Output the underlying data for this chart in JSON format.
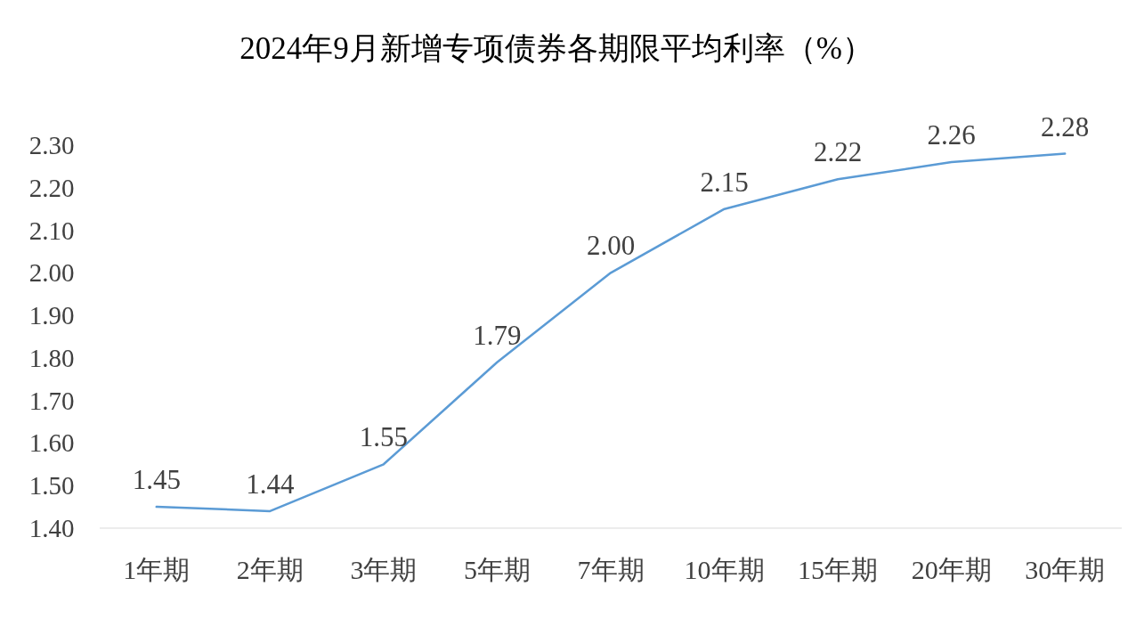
{
  "chart_data": {
    "type": "line",
    "title": "2024年9月新增专项债券各期限平均利率（%）",
    "categories": [
      "1年期",
      "2年期",
      "3年期",
      "5年期",
      "7年期",
      "10年期",
      "15年期",
      "20年期",
      "30年期"
    ],
    "series": [
      {
        "color": "#5b9bd5",
        "values": [
          1.45,
          1.44,
          1.55,
          1.79,
          2.0,
          2.15,
          2.22,
          2.26,
          2.28
        ],
        "value_labels": [
          "1.45",
          "1.44",
          "1.55",
          "1.79",
          "2.00",
          "2.15",
          "2.22",
          "2.26",
          "2.28"
        ]
      }
    ],
    "ylim": [
      1.4,
      2.3
    ],
    "yticks": [
      {
        "value": 1.4,
        "label": "1.40"
      },
      {
        "value": 1.5,
        "label": "1.50"
      },
      {
        "value": 1.6,
        "label": "1.60"
      },
      {
        "value": 1.7,
        "label": "1.70"
      },
      {
        "value": 1.8,
        "label": "1.80"
      },
      {
        "value": 1.9,
        "label": "1.90"
      },
      {
        "value": 2.0,
        "label": "2.00"
      },
      {
        "value": 2.1,
        "label": "2.10"
      },
      {
        "value": 2.2,
        "label": "2.20"
      },
      {
        "value": 2.3,
        "label": "2.30"
      }
    ],
    "grid": false,
    "marker": "none",
    "line_style": "solid"
  }
}
